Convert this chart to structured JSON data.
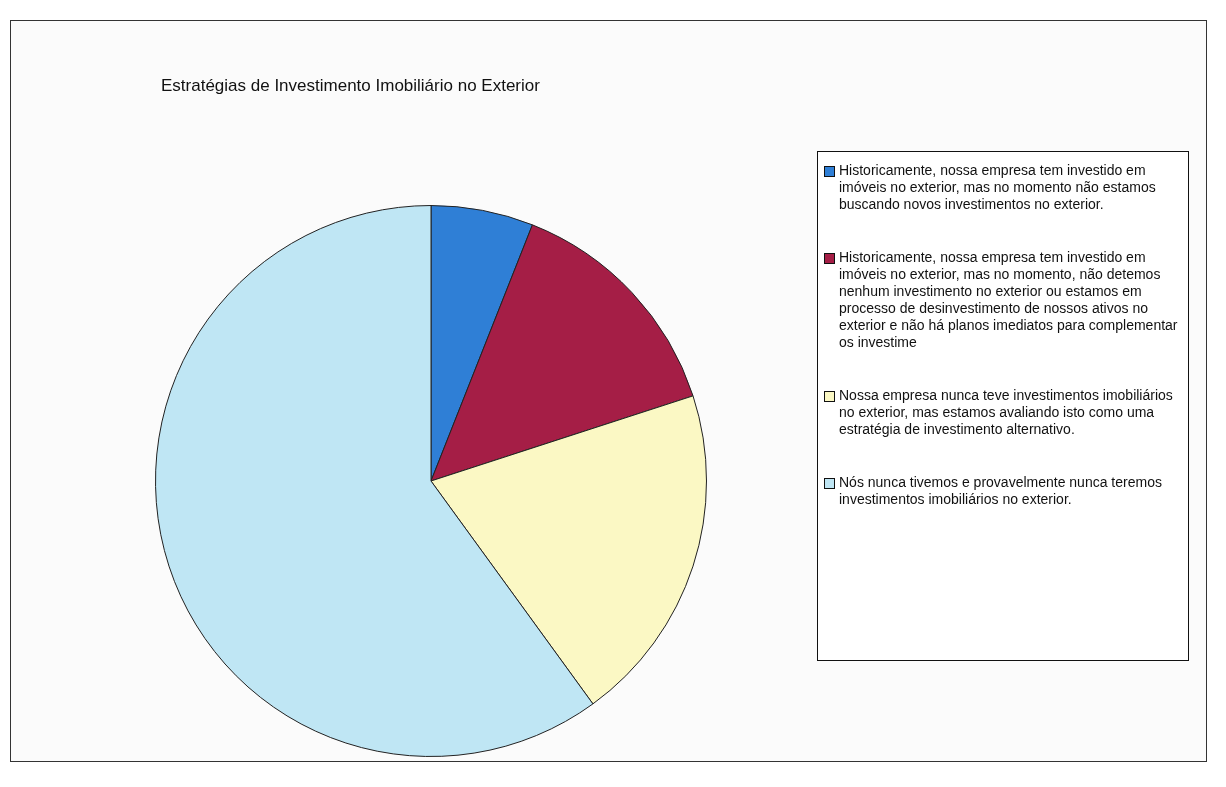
{
  "chart_data": {
    "type": "pie",
    "title": "Estratégias de Investimento Imobiliário no Exterior",
    "categories": [
      "Historicamente, nossa empresa tem  investido em imóveis no exterior, mas no momento não estamos buscando novos investimentos no exterior.",
      "Historicamente, nossa empresa tem investido em imóveis no exterior, mas no momento, não detemos nenhum investimento no exterior ou estamos em processo de desinvestimento de nossos ativos no exterior e não há planos imediatos para complementar os investime",
      "Nossa empresa nunca teve investimentos imobiliários no exterior, mas estamos avaliando isto como uma estratégia de investimento alternativo.",
      "Nós nunca tivemos e provavelmente nunca teremos investimentos imobiliários no exterior."
    ],
    "values": [
      6,
      14,
      20,
      60
    ],
    "colors": [
      "#2f7fd6",
      "#a51e46",
      "#fbf8c4",
      "#bfe6f4"
    ],
    "legend": "right"
  }
}
